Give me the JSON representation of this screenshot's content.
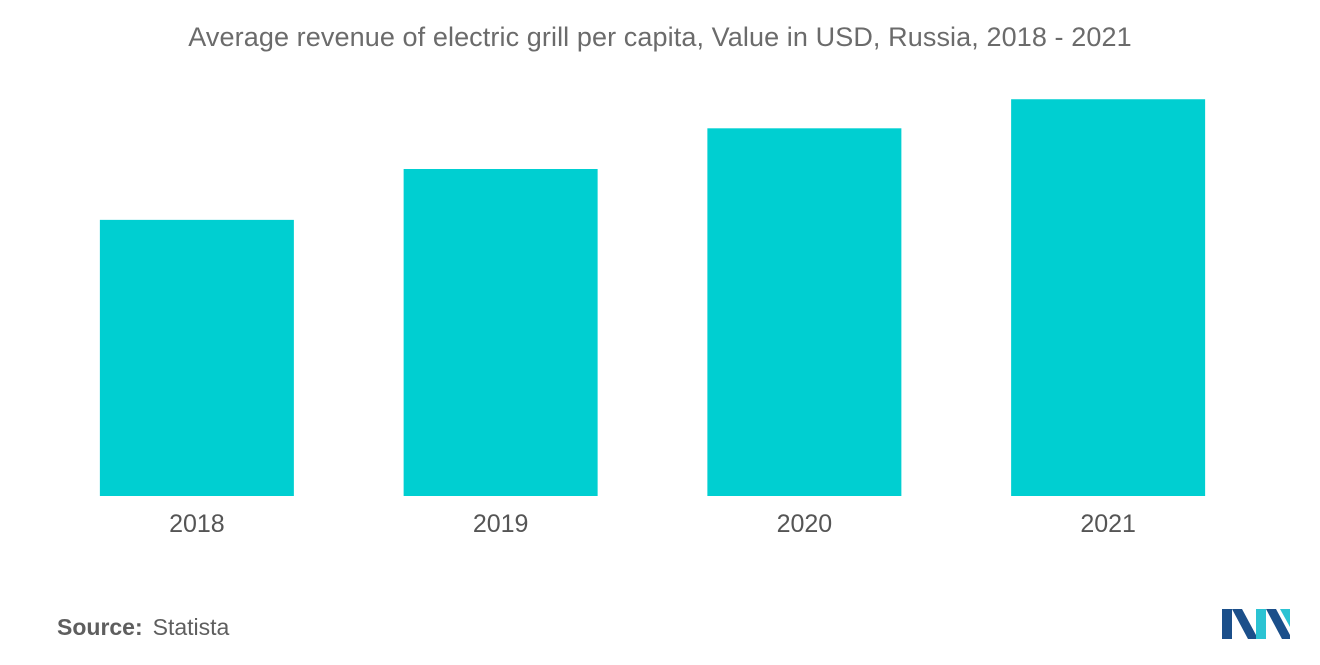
{
  "chart_data": {
    "type": "bar",
    "title": "Average revenue of electric grill per capita, Value in USD, Russia, 2018 - 2021",
    "categories": [
      "2018",
      "2019",
      "2020",
      "2021"
    ],
    "values": [
      1.9,
      2.25,
      2.53,
      2.73
    ],
    "ylim": [
      0,
      3.0
    ],
    "xlabel": "",
    "ylabel": "",
    "grid": false,
    "legend": "none",
    "bar_color": "#00cfd1"
  },
  "source": {
    "label": "Source:",
    "value": "Statista"
  },
  "logo": {
    "icon": "mordor-intelligence-logo-icon",
    "colors": [
      "#1b4f8a",
      "#2bc3d3"
    ]
  }
}
